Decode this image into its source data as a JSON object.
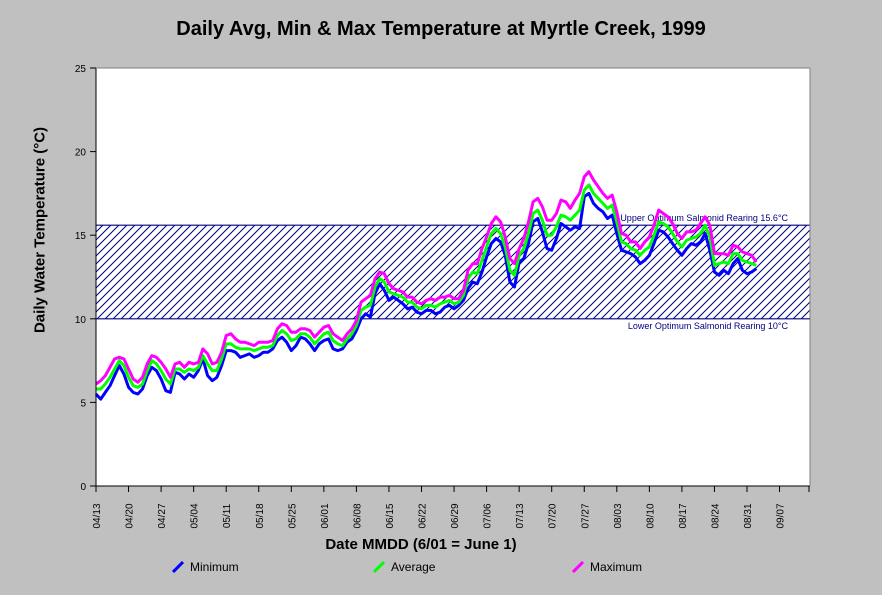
{
  "chart_data": {
    "type": "line",
    "title": "Daily Avg, Min & Max Temperature at Myrtle Creek, 1999",
    "xlabel": "Date MMDD (6/01 = June 1)",
    "ylabel": "Daily Water Temperature (°C)",
    "ylim": [
      0,
      25
    ],
    "yticks": [
      0,
      5,
      10,
      15,
      20,
      25
    ],
    "xlim": [
      "04/13",
      "09/13"
    ],
    "xticks": [
      "04/13",
      "04/20",
      "04/27",
      "05/04",
      "05/11",
      "05/18",
      "05/25",
      "06/01",
      "06/08",
      "06/15",
      "06/22",
      "06/29",
      "07/06",
      "07/13",
      "07/20",
      "07/27",
      "08/03",
      "08/10",
      "08/17",
      "08/24",
      "08/31",
      "09/07"
    ],
    "start_date": "04/13",
    "grid": false,
    "legend": "bottom",
    "bands": [
      {
        "label": "Upper Optimum Salmonid Rearing 15.6°C",
        "value": 15.6
      },
      {
        "label": "Lower Optimum Salmonid Rearing 10°C",
        "value": 10
      }
    ],
    "band_fill_color": "#000080",
    "series": [
      {
        "name": "Minimum",
        "color": "#0000ff",
        "values": [
          5.5,
          5.2,
          5.6,
          6.0,
          6.6,
          7.2,
          6.7,
          5.9,
          5.6,
          5.5,
          5.8,
          6.6,
          7.1,
          6.9,
          6.4,
          5.7,
          5.6,
          6.8,
          6.7,
          6.4,
          6.7,
          6.5,
          6.9,
          7.6,
          6.6,
          6.3,
          6.5,
          7.2,
          8.1,
          8.1,
          8.0,
          7.7,
          7.8,
          7.9,
          7.7,
          7.8,
          8.0,
          8.0,
          8.2,
          8.7,
          8.9,
          8.6,
          8.1,
          8.4,
          8.9,
          8.8,
          8.5,
          8.1,
          8.5,
          8.7,
          8.8,
          8.2,
          8.1,
          8.2,
          8.6,
          8.8,
          9.3,
          10.0,
          10.3,
          10.1,
          11.5,
          12.1,
          11.7,
          11.1,
          11.3,
          11.1,
          10.9,
          10.6,
          10.7,
          10.4,
          10.3,
          10.5,
          10.5,
          10.3,
          10.4,
          10.7,
          10.8,
          10.6,
          10.8,
          11.1,
          11.8,
          12.2,
          12.1,
          12.8,
          13.7,
          14.5,
          14.8,
          14.6,
          13.8,
          12.2,
          11.9,
          13.4,
          13.6,
          14.5,
          15.8,
          16.0,
          15.2,
          14.2,
          14.1,
          14.8,
          15.7,
          15.5,
          15.3,
          15.5,
          15.4,
          17.3,
          17.5,
          16.9,
          16.6,
          16.4,
          16.0,
          16.2,
          15.1,
          14.1,
          14.0,
          13.9,
          13.7,
          13.3,
          13.5,
          13.8,
          14.5,
          15.3,
          15.2,
          14.9,
          14.5,
          14.1,
          13.8,
          14.2,
          14.5,
          14.4,
          14.6,
          15.1,
          14.1,
          12.8,
          12.6,
          12.9,
          12.7,
          13.3,
          13.6,
          12.9,
          12.7,
          12.8,
          13.0
        ]
      },
      {
        "name": "Average",
        "color": "#00ff00",
        "values": [
          5.8,
          5.8,
          6.1,
          6.5,
          7.0,
          7.5,
          7.2,
          6.5,
          6.0,
          5.9,
          6.1,
          6.9,
          7.5,
          7.3,
          6.9,
          6.4,
          6.1,
          7.0,
          7.0,
          6.8,
          7.0,
          6.9,
          7.1,
          7.8,
          7.3,
          6.9,
          6.9,
          7.6,
          8.5,
          8.5,
          8.3,
          8.2,
          8.2,
          8.2,
          8.1,
          8.2,
          8.3,
          8.3,
          8.4,
          9.0,
          9.3,
          9.1,
          8.7,
          8.8,
          9.1,
          9.1,
          8.9,
          8.5,
          8.8,
          9.1,
          9.2,
          8.7,
          8.5,
          8.4,
          8.8,
          9.1,
          9.6,
          10.5,
          10.7,
          10.8,
          11.9,
          12.4,
          12.2,
          11.6,
          11.5,
          11.4,
          11.3,
          11.0,
          11.0,
          10.7,
          10.6,
          10.8,
          10.8,
          10.7,
          10.9,
          11.0,
          11.1,
          10.9,
          11.0,
          11.4,
          12.4,
          12.8,
          12.7,
          13.5,
          14.3,
          15.1,
          15.4,
          15.1,
          14.3,
          12.9,
          12.6,
          13.8,
          14.2,
          15.1,
          16.3,
          16.5,
          15.9,
          15.0,
          15.0,
          15.5,
          16.2,
          16.1,
          15.9,
          16.2,
          16.5,
          17.7,
          18.0,
          17.5,
          17.2,
          16.9,
          16.6,
          16.8,
          15.8,
          14.6,
          14.5,
          14.2,
          14.1,
          13.8,
          14.1,
          14.3,
          15.0,
          15.8,
          15.7,
          15.5,
          15.1,
          14.6,
          14.3,
          14.7,
          14.8,
          14.9,
          15.1,
          15.6,
          14.9,
          13.2,
          13.3,
          13.4,
          13.3,
          13.9,
          13.9,
          13.5,
          13.4,
          13.3,
          13.2
        ]
      },
      {
        "name": "Maximum",
        "color": "#ff00ff",
        "values": [
          6.1,
          6.3,
          6.6,
          7.1,
          7.6,
          7.7,
          7.6,
          7.0,
          6.4,
          6.2,
          6.5,
          7.3,
          7.8,
          7.7,
          7.4,
          7.0,
          6.5,
          7.3,
          7.4,
          7.1,
          7.4,
          7.3,
          7.4,
          8.2,
          7.9,
          7.3,
          7.4,
          8.0,
          9.0,
          9.1,
          8.8,
          8.6,
          8.6,
          8.5,
          8.4,
          8.6,
          8.6,
          8.6,
          8.7,
          9.4,
          9.7,
          9.6,
          9.2,
          9.2,
          9.4,
          9.4,
          9.3,
          8.9,
          9.2,
          9.5,
          9.6,
          9.1,
          8.9,
          8.7,
          9.1,
          9.4,
          9.9,
          11.0,
          11.2,
          11.4,
          12.4,
          12.8,
          12.7,
          12.1,
          11.8,
          11.7,
          11.6,
          11.3,
          11.3,
          11.0,
          10.9,
          11.1,
          11.2,
          11.1,
          11.3,
          11.3,
          11.4,
          11.2,
          11.2,
          11.7,
          12.9,
          13.3,
          13.3,
          14.2,
          14.9,
          15.7,
          16.1,
          15.8,
          14.9,
          13.6,
          13.3,
          14.2,
          14.8,
          15.8,
          17.0,
          17.2,
          16.7,
          15.9,
          15.9,
          16.3,
          17.1,
          17.0,
          16.6,
          17.1,
          17.5,
          18.5,
          18.8,
          18.3,
          17.9,
          17.5,
          17.2,
          17.4,
          16.4,
          15.1,
          15.0,
          14.6,
          14.6,
          14.2,
          14.6,
          14.9,
          15.6,
          16.5,
          16.3,
          16.1,
          15.7,
          15.1,
          14.8,
          15.2,
          15.2,
          15.3,
          15.7,
          16.1,
          15.6,
          13.9,
          13.9,
          13.9,
          13.8,
          14.4,
          14.3,
          14.0,
          13.9,
          13.8,
          13.4
        ]
      }
    ]
  }
}
